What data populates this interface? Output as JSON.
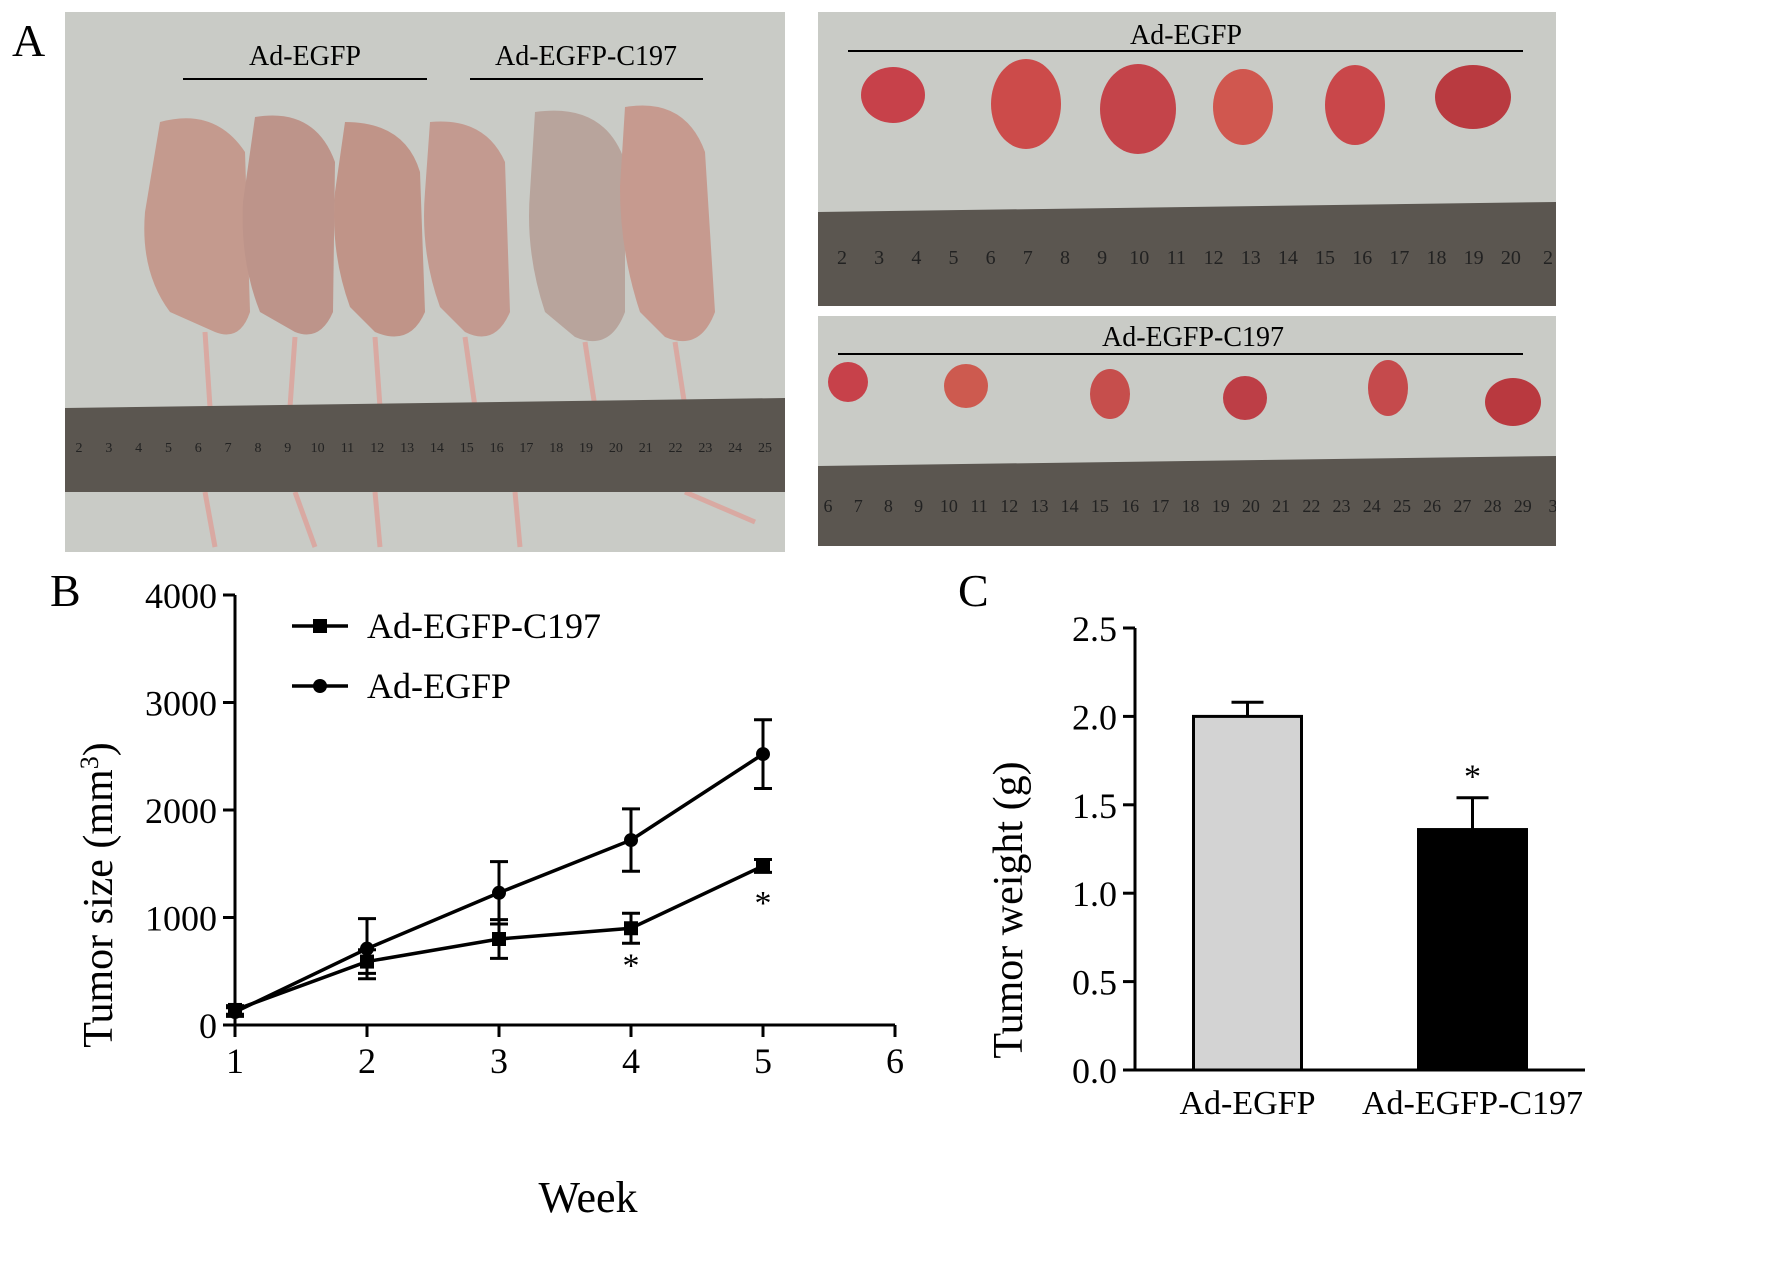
{
  "panels": {
    "a": {
      "letter": "A"
    },
    "b": {
      "letter": "B"
    },
    "c": {
      "letter": "C"
    }
  },
  "photo_mice": {
    "group_labels": [
      "Ad-EGFP",
      "Ad-EGFP-C197"
    ],
    "ruler_numbers": [
      "2",
      "3",
      "4",
      "5",
      "6",
      "7",
      "8",
      "9",
      "10",
      "11",
      "12",
      "13",
      "14",
      "15",
      "16",
      "17",
      "18",
      "19",
      "20",
      "21",
      "22",
      "23",
      "24",
      "25"
    ]
  },
  "photo_tumors_top": {
    "label": "Ad-EGFP",
    "ruler_numbers": [
      "2",
      "3",
      "4",
      "5",
      "6",
      "7",
      "8",
      "9",
      "10",
      "11",
      "12",
      "13",
      "14",
      "15",
      "16",
      "17",
      "18",
      "19",
      "20",
      "2"
    ]
  },
  "photo_tumors_bottom": {
    "label": "Ad-EGFP-C197",
    "ruler_numbers": [
      "6",
      "7",
      "8",
      "9",
      "10",
      "11",
      "12",
      "13",
      "14",
      "15",
      "16",
      "17",
      "18",
      "19",
      "20",
      "21",
      "22",
      "23",
      "24",
      "25",
      "26",
      "27",
      "28",
      "29",
      "3"
    ]
  },
  "colors": {
    "photo_background": "#c9cbc6",
    "mouse_skin": "#c49a8e",
    "tumor": "#c7414a",
    "ruler": "#5b5650",
    "bar_ad_egfp": "#d3d3d3",
    "bar_ad_egfp_c197": "#000000"
  },
  "chart_data": [
    {
      "type": "line",
      "xlabel": "Week",
      "ylabel": "Tumor size (mm",
      "ylabel_sup": "3",
      "ylabel_end": ")",
      "xlim": [
        1,
        6
      ],
      "ylim": [
        0,
        4000
      ],
      "xticks": [
        1,
        2,
        3,
        4,
        5,
        6
      ],
      "yticks": [
        0,
        1000,
        2000,
        3000,
        4000
      ],
      "legend_position": "top-left",
      "series": [
        {
          "name": "Ad-EGFP-C197",
          "marker": "square",
          "x": [
            1,
            2,
            3,
            4,
            5
          ],
          "y": [
            140,
            590,
            800,
            900,
            1480
          ],
          "error": [
            40,
            110,
            180,
            140,
            60
          ]
        },
        {
          "name": "Ad-EGFP",
          "marker": "circle",
          "x": [
            1,
            2,
            3,
            4,
            5
          ],
          "y": [
            120,
            710,
            1230,
            1720,
            2520
          ],
          "error": [
            40,
            280,
            290,
            290,
            320
          ]
        }
      ],
      "annotations": [
        {
          "text": "*",
          "x": 4,
          "y": 900
        },
        {
          "text": "*",
          "x": 5,
          "y": 1480
        }
      ]
    },
    {
      "type": "bar",
      "ylabel": "Tumor weight (g)",
      "categories": [
        "Ad-EGFP",
        "Ad-EGFP-C197"
      ],
      "values": [
        2.0,
        1.36
      ],
      "error": [
        0.08,
        0.18
      ],
      "ylim": [
        0,
        2.5
      ],
      "yticks": [
        "0.0",
        "0.5",
        "1.0",
        "1.5",
        "2.0",
        "2.5"
      ],
      "annotations": [
        {
          "text": "*",
          "category": "Ad-EGFP-C197"
        }
      ]
    }
  ]
}
